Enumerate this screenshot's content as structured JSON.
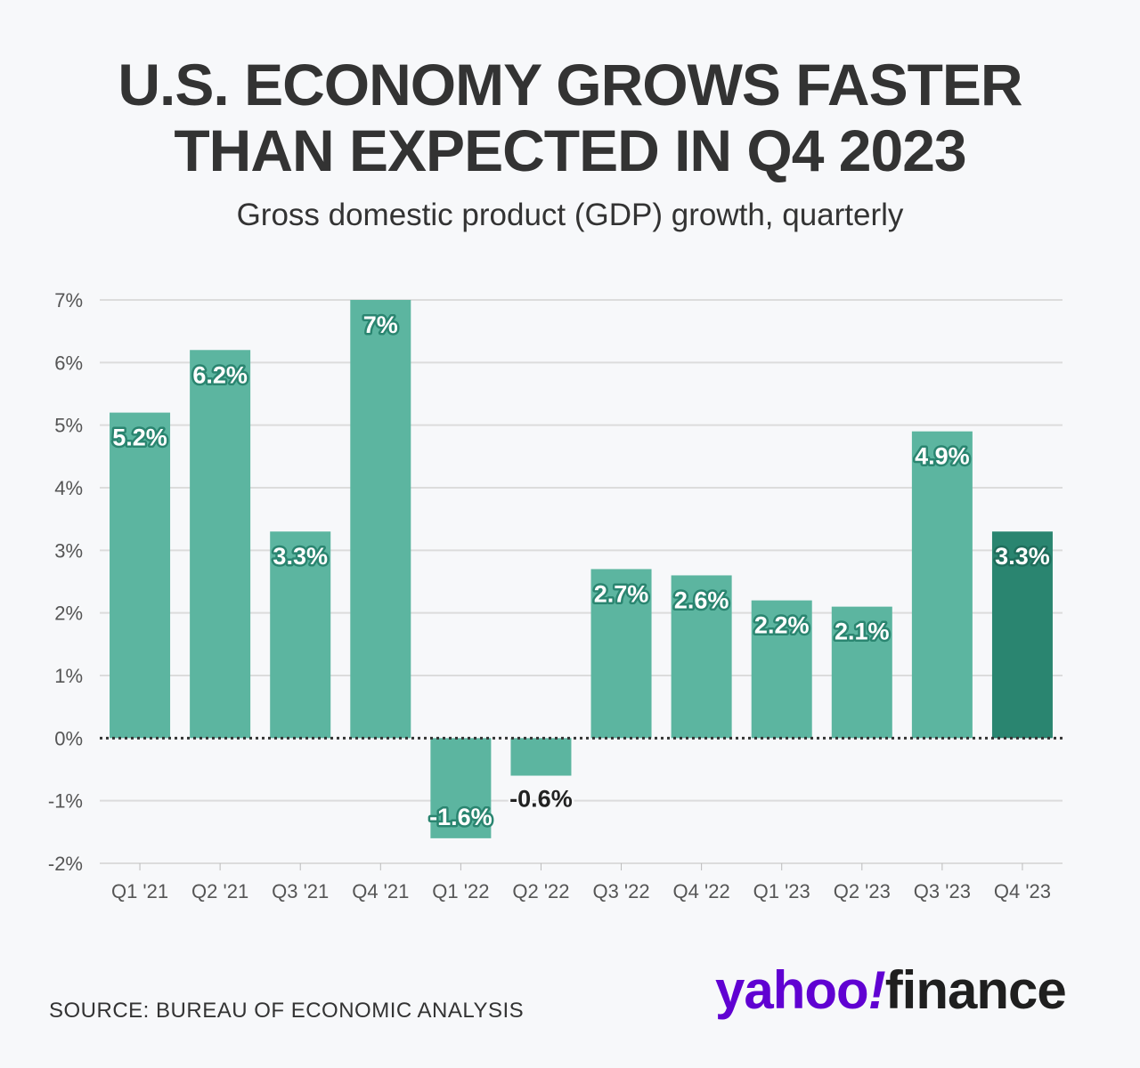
{
  "header": {
    "title_line1": "U.S. ECONOMY GROWS FASTER",
    "title_line2": "THAN EXPECTED IN Q4 2023",
    "subtitle": "Gross domestic product (GDP) growth, quarterly"
  },
  "footer": {
    "source": "SOURCE: BUREAU OF ECONOMIC ANALYSIS",
    "logo_yahoo": "yahoo",
    "logo_bang": "!",
    "logo_finance": "finance"
  },
  "colors": {
    "bar": "#5cb5a0",
    "bar_highlight": "#2a8570",
    "gridline": "#dcdcdc",
    "zero_line": "#333333"
  },
  "chart_data": {
    "type": "bar",
    "title": "U.S. ECONOMY GROWS FASTER THAN EXPECTED IN Q4 2023",
    "subtitle": "Gross domestic product (GDP) growth, quarterly",
    "xlabel": "",
    "ylabel": "",
    "categories": [
      "Q1 '21",
      "Q2 '21",
      "Q3 '21",
      "Q4 '21",
      "Q1 '22",
      "Q2 '22",
      "Q3 '22",
      "Q4 '22",
      "Q1 '23",
      "Q2 '23",
      "Q3 '23",
      "Q4 '23"
    ],
    "values": [
      5.2,
      6.2,
      3.3,
      7,
      -1.6,
      -0.6,
      2.7,
      2.6,
      2.2,
      2.1,
      4.9,
      3.3
    ],
    "labels": [
      "5.2%",
      "6.2%",
      "3.3%",
      "7%",
      "-1.6%",
      "-0.6%",
      "2.7%",
      "2.6%",
      "2.2%",
      "2.1%",
      "4.9%",
      "3.3%"
    ],
    "highlight_index": 11,
    "ylim": [
      -2,
      7
    ],
    "yticks": [
      7,
      6,
      5,
      4,
      3,
      2,
      1,
      0,
      -1,
      -2
    ],
    "ytick_labels": [
      "7%",
      "6%",
      "5%",
      "4%",
      "3%",
      "2%",
      "1%",
      "0%",
      "-1%",
      "-2%"
    ],
    "grid": true,
    "legend": "none"
  }
}
